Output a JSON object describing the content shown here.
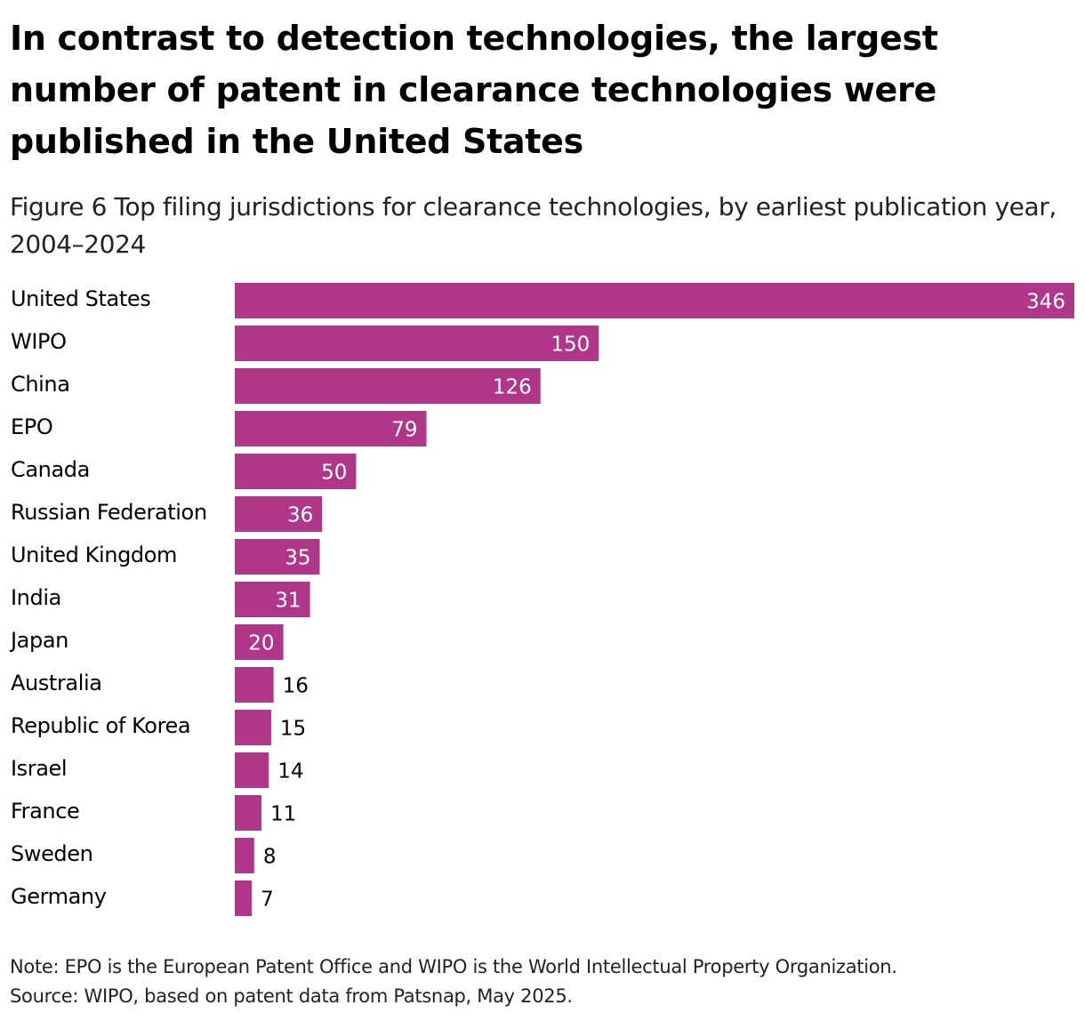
{
  "title": "In contrast to detection technologies, the largest number of patent in clearance technologies were published in the United States",
  "subtitle": "Figure 6 Top filing jurisdictions for clearance technologies, by earliest publication year, 2004–2024",
  "note": "Note: EPO is the European Patent Office and WIPO is the World Intellectual Property Organization.",
  "source": "Source: WIPO, based on patent data from Patsnap, May 2025.",
  "colors": {
    "bar": "#b0368a",
    "label_inside": "#ffffff",
    "label_outside": "#000000",
    "category_text": "#000000"
  },
  "chart_data": {
    "type": "bar",
    "orientation": "horizontal",
    "categories": [
      "United States",
      "WIPO",
      "China",
      "EPO",
      "Canada",
      "Russian Federation",
      "United Kingdom",
      "India",
      "Japan",
      "Australia",
      "Republic of Korea",
      "Israel",
      "France",
      "Sweden",
      "Germany"
    ],
    "values": [
      346,
      150,
      126,
      79,
      50,
      36,
      35,
      31,
      20,
      16,
      15,
      14,
      11,
      8,
      7
    ],
    "xlim": [
      0,
      346
    ],
    "grid": false,
    "legend": false,
    "data_labels": true
  }
}
